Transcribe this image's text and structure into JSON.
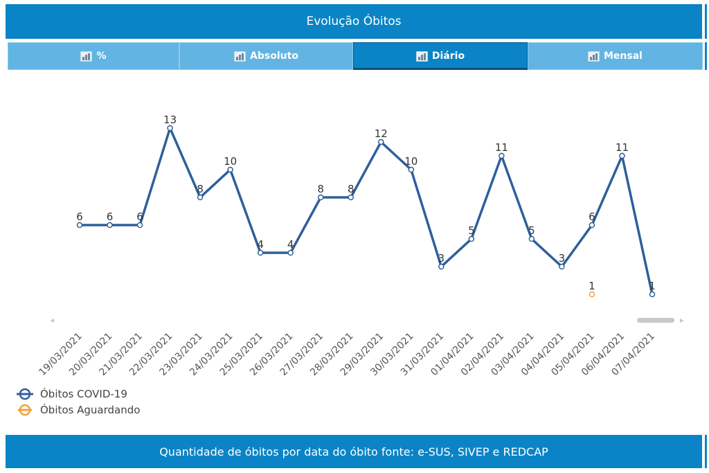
{
  "header": {
    "title": "Evolução Óbitos"
  },
  "tabs": [
    {
      "label": "%",
      "icon": "bar-chart-icon",
      "active": false
    },
    {
      "label": "Absoluto",
      "icon": "bar-chart-icon",
      "active": false
    },
    {
      "label": "Diário",
      "icon": "bar-chart-icon",
      "active": true
    },
    {
      "label": "Mensal",
      "icon": "bar-chart-icon",
      "active": false
    }
  ],
  "footer": {
    "text": "Quantidade de óbitos por data do óbito fonte: e-SUS, SIVEP e REDCAP"
  },
  "colors": {
    "brand": "#0a84c6",
    "tab_inactive": "#62b4e2",
    "covid": "#2e5f9a",
    "aguardando": "#f0a03c"
  },
  "chart_data": {
    "type": "line",
    "categories": [
      "19/03/2021",
      "20/03/2021",
      "21/03/2021",
      "22/03/2021",
      "23/03/2021",
      "24/03/2021",
      "25/03/2021",
      "26/03/2021",
      "27/03/2021",
      "28/03/2021",
      "29/03/2021",
      "30/03/2021",
      "31/03/2021",
      "01/04/2021",
      "02/04/2021",
      "03/04/2021",
      "04/04/2021",
      "05/04/2021",
      "06/04/2021",
      "07/04/2021"
    ],
    "series": [
      {
        "name": "Óbitos COVID-19",
        "color": "#2e5f9a",
        "values": [
          6,
          6,
          6,
          13,
          8,
          10,
          4,
          4,
          8,
          8,
          12,
          10,
          3,
          5,
          11,
          5,
          3,
          6,
          11,
          1
        ]
      },
      {
        "name": "Óbitos Aguardando",
        "color": "#f0a03c",
        "values": [
          null,
          null,
          null,
          null,
          null,
          null,
          null,
          null,
          null,
          null,
          null,
          null,
          null,
          null,
          null,
          null,
          null,
          1,
          null,
          null
        ]
      }
    ],
    "data_labels": true,
    "grid": false,
    "legend_position": "bottom-left"
  }
}
